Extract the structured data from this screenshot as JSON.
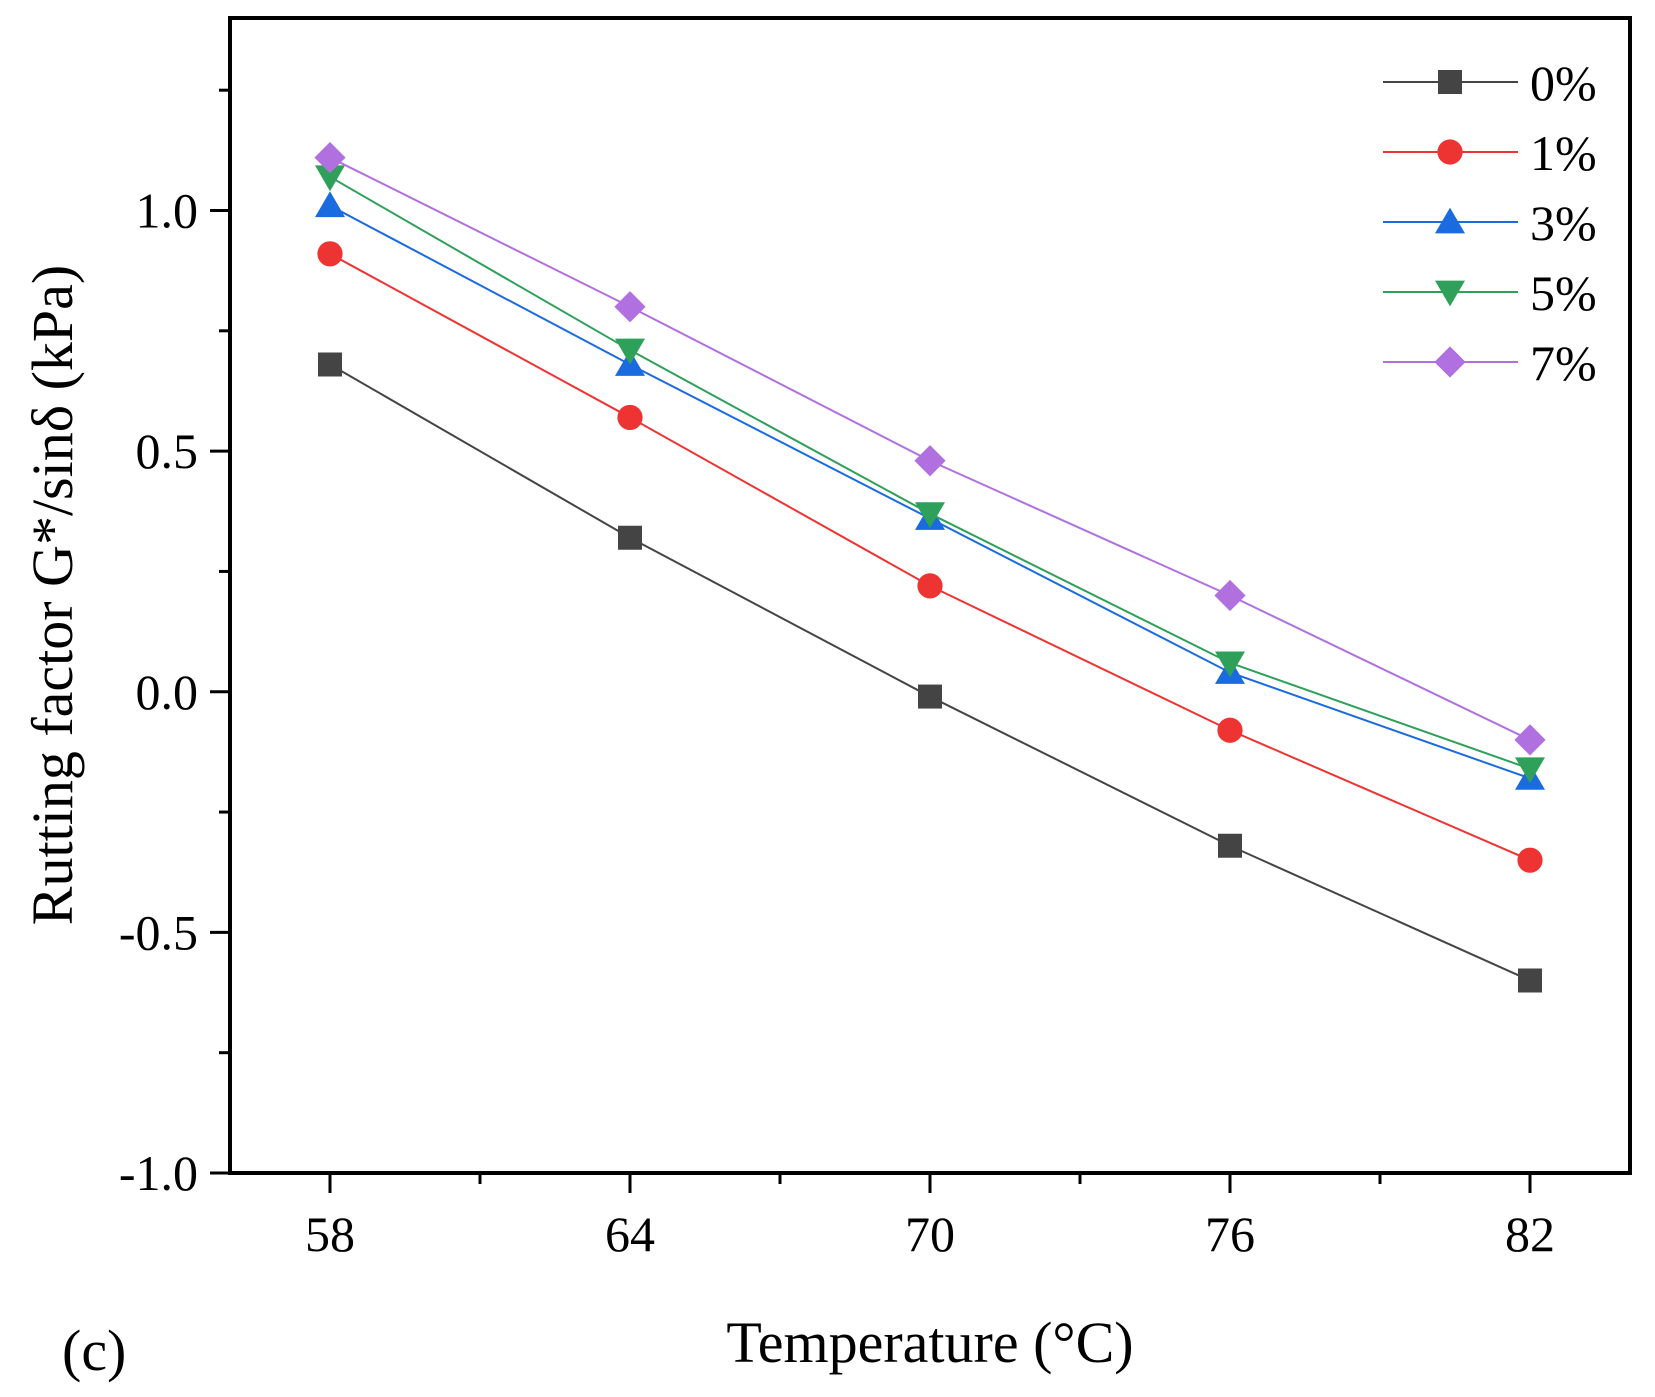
{
  "chart_data": {
    "type": "line",
    "title": "",
    "panel_label": "(c)",
    "xlabel": "Temperature (°C)",
    "ylabel": "Rutting factor G*/sinδ (kPa)",
    "x": [
      58,
      64,
      70,
      76,
      82
    ],
    "x_tick_labels": [
      "58",
      "64",
      "70",
      "76",
      "82"
    ],
    "xlim": [
      56,
      84
    ],
    "ylim": [
      -1.0,
      1.4
    ],
    "y_ticks": [
      -1.0,
      -0.5,
      0.0,
      0.5,
      1.0
    ],
    "y_tick_labels": [
      "-1.0",
      "-0.5",
      "0.0",
      "0.5",
      "1.0"
    ],
    "grid": false,
    "legend_position": "top-right",
    "series": [
      {
        "name": "0%",
        "marker": "square",
        "color": "#444444",
        "values": [
          0.68,
          0.32,
          -0.01,
          -0.32,
          -0.6
        ]
      },
      {
        "name": "1%",
        "marker": "circle",
        "color": "#ee3333",
        "values": [
          0.91,
          0.57,
          0.22,
          -0.08,
          -0.35
        ]
      },
      {
        "name": "3%",
        "marker": "triangle-up",
        "color": "#1a6be0",
        "values": [
          1.01,
          0.68,
          0.36,
          0.04,
          -0.18
        ]
      },
      {
        "name": "5%",
        "marker": "triangle-down",
        "color": "#2ea05a",
        "values": [
          1.07,
          0.71,
          0.37,
          0.06,
          -0.16
        ]
      },
      {
        "name": "7%",
        "marker": "diamond",
        "color": "#b070e0",
        "values": [
          1.11,
          0.8,
          0.48,
          0.2,
          -0.1
        ]
      }
    ]
  }
}
